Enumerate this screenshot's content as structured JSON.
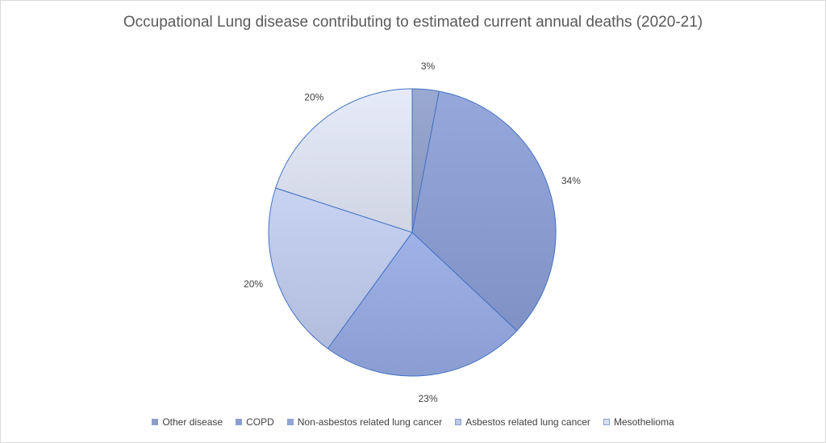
{
  "chart_data": {
    "type": "pie",
    "title": "Occupational Lung disease contributing to estimated current annual deaths (2020-21)",
    "categories": [
      "Other disease",
      "COPD",
      "Non-asbestos related lung cancer",
      "Asbestos related lung cancer",
      "Mesothelioma"
    ],
    "values": [
      3,
      34,
      23,
      20,
      20
    ],
    "labels": [
      "3%",
      "34%",
      "23%",
      "20%",
      "20%"
    ],
    "colors": [
      "#8e9dc6",
      "#8a9ccf",
      "#94a7dc",
      "#bcc6e6",
      "#dadfee"
    ],
    "legend_position": "bottom"
  }
}
